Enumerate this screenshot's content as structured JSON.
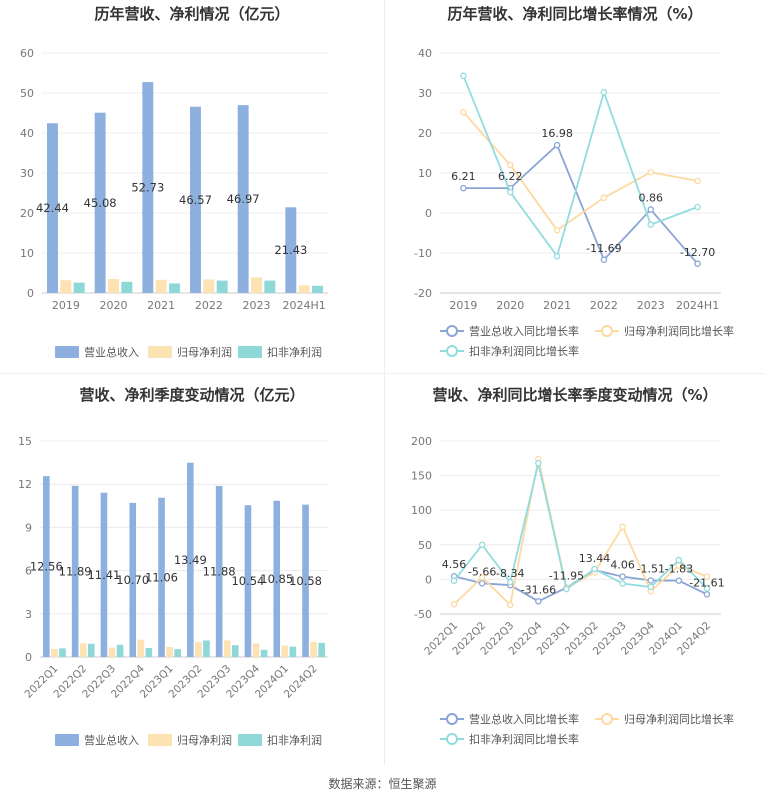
{
  "source": "数据来源：恒生聚源",
  "colors": {
    "revenue": "#8eb0de",
    "net_profit": "#fde2b4",
    "deducted_profit": "#8ed8d8",
    "rev_growth_line": "#8aa5d6",
    "np_growth_line": "#fdd9a0",
    "dp_growth_line": "#92dcdf"
  },
  "chart_data": [
    {
      "type": "bar",
      "title": "历年营收、净利情况（亿元）",
      "categories": [
        "2019",
        "2020",
        "2021",
        "2022",
        "2023",
        "2024H1"
      ],
      "ylim": [
        0,
        60
      ],
      "yticks": [
        0,
        10,
        20,
        30,
        40,
        50,
        60
      ],
      "series": [
        {
          "name": "营业总收入",
          "values": [
            42.44,
            45.08,
            52.73,
            46.57,
            46.97,
            21.43
          ],
          "labels": [
            "42.44",
            "45.08",
            "52.73",
            "46.57",
            "46.97",
            "21.43"
          ]
        },
        {
          "name": "归母净利润",
          "values": [
            3.2,
            3.5,
            3.3,
            3.4,
            3.9,
            1.9
          ]
        },
        {
          "name": "扣非净利润",
          "values": [
            2.6,
            2.8,
            2.4,
            3.1,
            3.1,
            1.8
          ]
        }
      ],
      "legend": "bottom"
    },
    {
      "type": "line",
      "title": "历年营收、净利同比增长率情况（%）",
      "categories": [
        "2019",
        "2020",
        "2021",
        "2022",
        "2023",
        "2024H1"
      ],
      "ylim": [
        -20,
        40
      ],
      "yticks": [
        -20,
        -10,
        0,
        10,
        20,
        30,
        40
      ],
      "series": [
        {
          "name": "营业总收入同比增长率",
          "values": [
            6.21,
            6.22,
            16.98,
            -11.69,
            0.86,
            -12.7
          ],
          "labels": [
            "6.21",
            "6.22",
            "16.98",
            "-11.69",
            "0.86",
            "-12.70"
          ]
        },
        {
          "name": "归母净利润同比增长率",
          "values": [
            25.2,
            12.0,
            -4.3,
            3.8,
            10.2,
            8.0
          ]
        },
        {
          "name": "扣非净利润同比增长率",
          "values": [
            34.3,
            5.2,
            -10.8,
            30.2,
            -2.9,
            1.5
          ]
        }
      ],
      "legend": "bottom"
    },
    {
      "type": "bar",
      "title": "营收、净利季度变动情况（亿元）",
      "categories": [
        "2022Q1",
        "2022Q2",
        "2022Q3",
        "2022Q4",
        "2023Q1",
        "2023Q2",
        "2023Q3",
        "2023Q4",
        "2024Q1",
        "2024Q2"
      ],
      "ylim": [
        0,
        15
      ],
      "yticks": [
        0,
        3,
        6,
        9,
        12,
        15
      ],
      "series": [
        {
          "name": "营业总收入",
          "values": [
            12.56,
            11.89,
            11.41,
            10.7,
            11.06,
            13.49,
            11.88,
            10.54,
            10.85,
            10.58
          ],
          "labels": [
            "12.56",
            "11.89",
            "11.41",
            "10.70",
            "11.06",
            "13.49",
            "11.88",
            "10.54",
            "10.85",
            "10.58"
          ]
        },
        {
          "name": "归母净利润",
          "values": [
            0.55,
            0.95,
            0.65,
            1.2,
            0.7,
            1.05,
            1.15,
            0.95,
            0.8,
            1.05
          ]
        },
        {
          "name": "扣非净利润",
          "values": [
            0.6,
            0.92,
            0.85,
            0.62,
            0.55,
            1.15,
            0.82,
            0.5,
            0.72,
            0.98
          ]
        }
      ],
      "legend": "bottom"
    },
    {
      "type": "line",
      "title": "营收、净利同比增长率季度变动情况（%）",
      "categories": [
        "2022Q1",
        "2022Q2",
        "2022Q3",
        "2022Q4",
        "2023Q1",
        "2023Q2",
        "2023Q3",
        "2023Q4",
        "2024Q1",
        "2024Q2"
      ],
      "ylim": [
        -50,
        200
      ],
      "yticks": [
        -50,
        0,
        50,
        100,
        150,
        200
      ],
      "series": [
        {
          "name": "营业总收入同比增长率",
          "values": [
            4.56,
            -5.66,
            -8.34,
            -31.66,
            -11.95,
            13.44,
            4.06,
            -1.51,
            -1.83,
            -21.61
          ],
          "labels": [
            "4.56",
            "-5.66",
            "-8.34",
            "-31.66",
            "-11.95",
            "13.44",
            "4.06",
            "-1.51",
            "-1.83",
            "-21.61"
          ]
        },
        {
          "name": "归母净利润同比增长率",
          "values": [
            -36,
            3,
            -37,
            174,
            -12,
            10,
            76,
            -17,
            20,
            4
          ]
        },
        {
          "name": "扣非净利润同比增长率",
          "values": [
            -2,
            50,
            -4,
            168,
            -14,
            15,
            -6,
            -11,
            28,
            -13
          ]
        }
      ],
      "legend": "bottom"
    }
  ]
}
